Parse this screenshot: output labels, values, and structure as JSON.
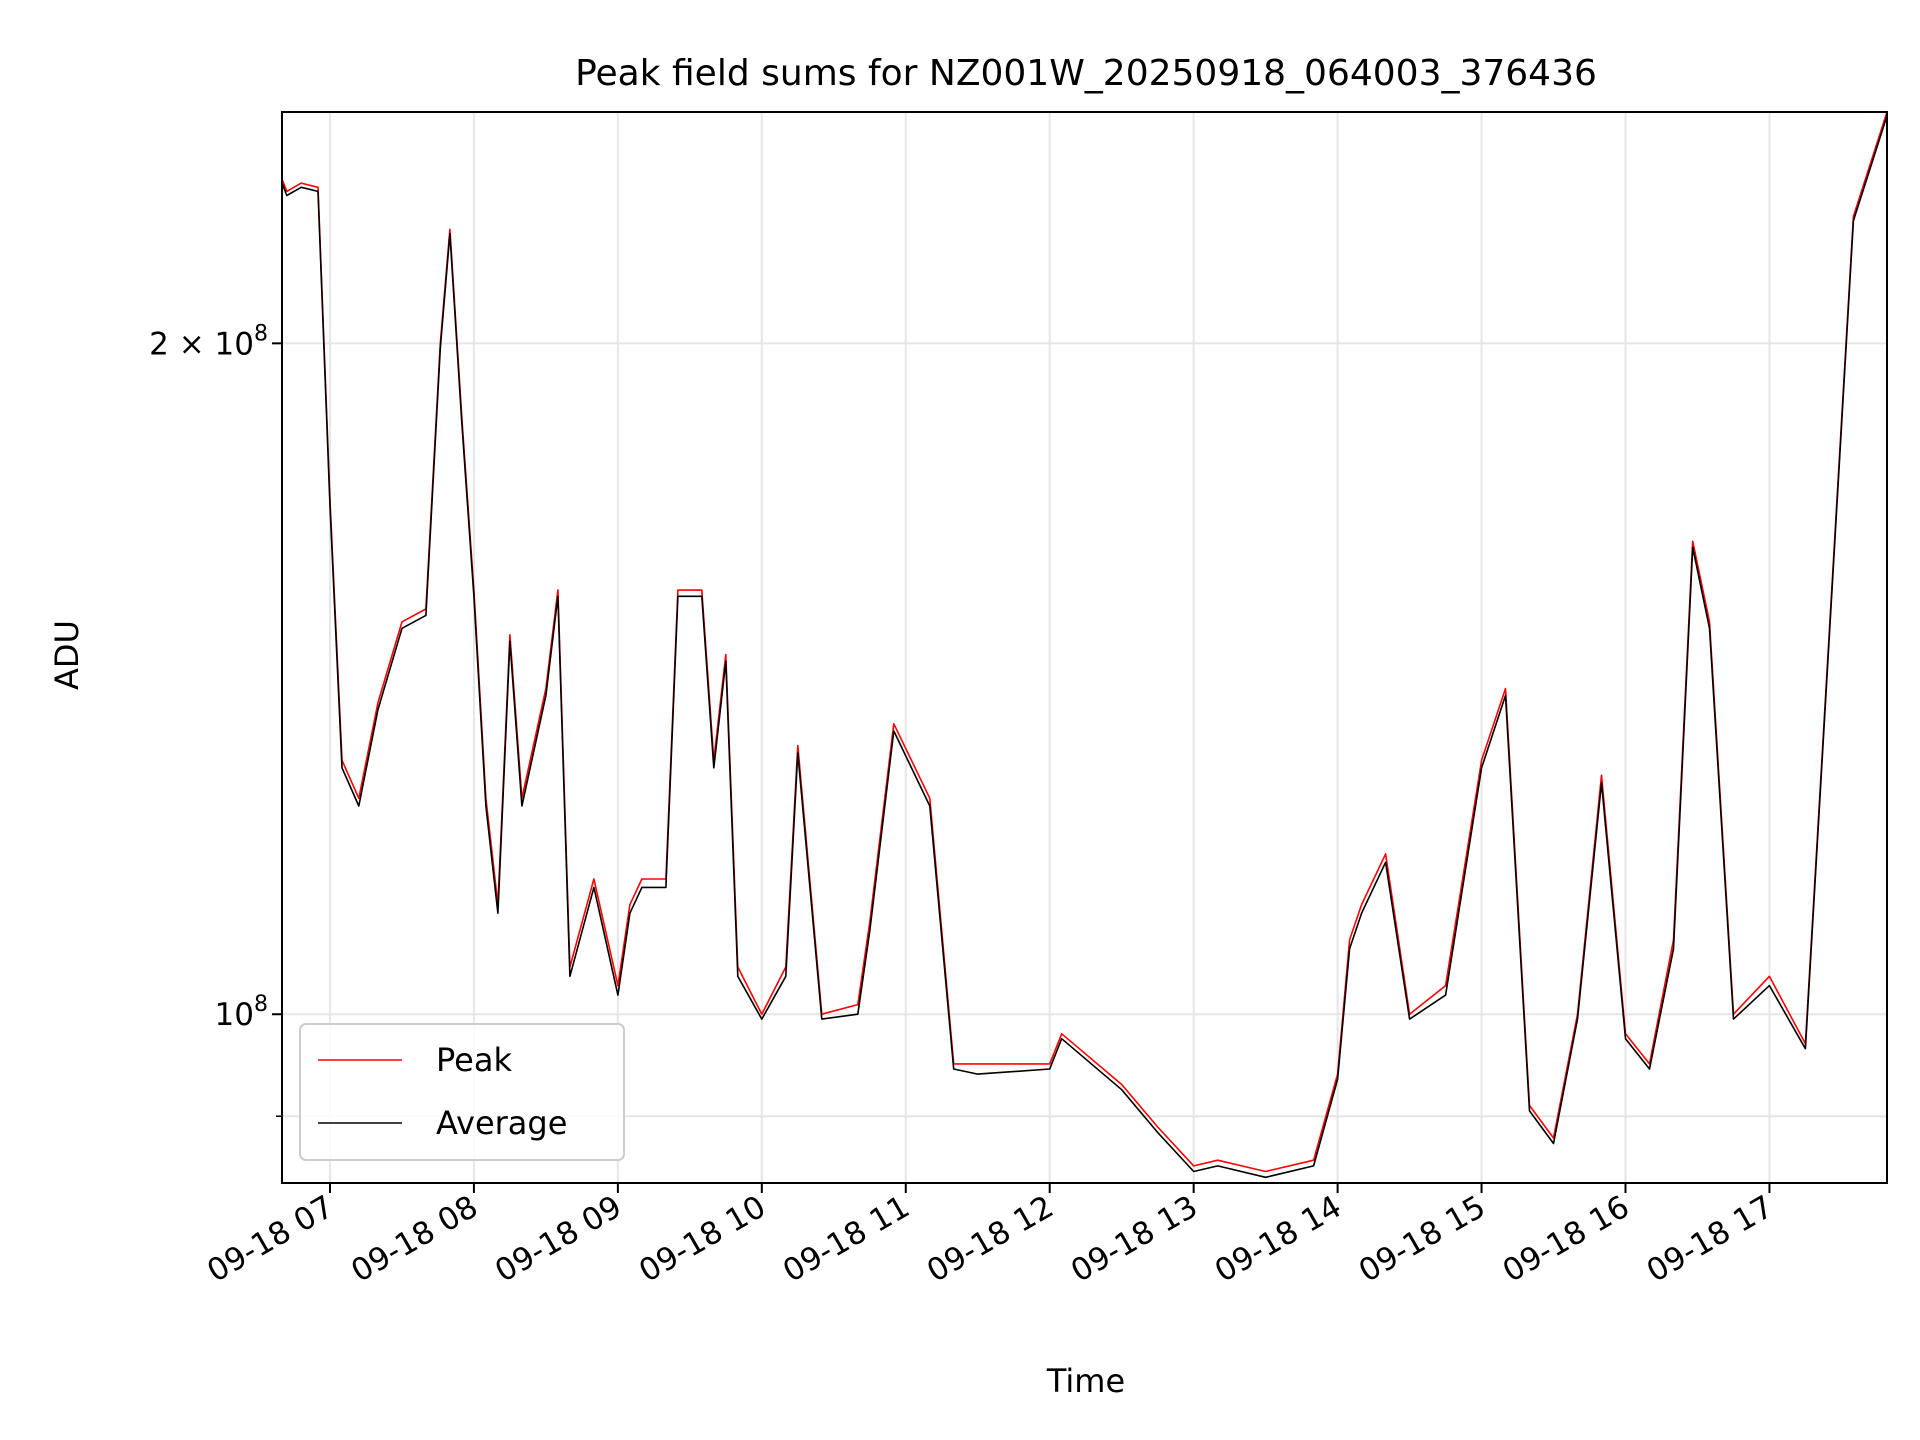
{
  "chart_data": {
    "type": "line",
    "title": "Peak field sums for NZ001W_20250918_064003_376436",
    "xlabel": "Time",
    "ylabel": "ADU",
    "x_axis": {
      "kind": "time",
      "range": [
        "2025-09-18 06:40",
        "2025-09-18 17:49"
      ],
      "ticks": [
        {
          "t": "2025-09-18 07:00",
          "label": "09-18 07"
        },
        {
          "t": "2025-09-18 08:00",
          "label": "09-18 08"
        },
        {
          "t": "2025-09-18 09:00",
          "label": "09-18 09"
        },
        {
          "t": "2025-09-18 10:00",
          "label": "09-18 10"
        },
        {
          "t": "2025-09-18 11:00",
          "label": "09-18 11"
        },
        {
          "t": "2025-09-18 12:00",
          "label": "09-18 12"
        },
        {
          "t": "2025-09-18 13:00",
          "label": "09-18 13"
        },
        {
          "t": "2025-09-18 14:00",
          "label": "09-18 14"
        },
        {
          "t": "2025-09-18 15:00",
          "label": "09-18 15"
        },
        {
          "t": "2025-09-18 16:00",
          "label": "09-18 16"
        },
        {
          "t": "2025-09-18 17:00",
          "label": "09-18 17"
        }
      ]
    },
    "y_axis": {
      "scale": "log",
      "range": [
        84000000,
        254000000
      ],
      "major_ticks": [
        {
          "value": 100000000,
          "label_base": "10",
          "label_exp": "8"
        },
        {
          "value": 200000000,
          "label_base": "2 × 10",
          "label_exp": "8"
        }
      ],
      "minor_ticks": [
        90000000
      ]
    },
    "grid": true,
    "legend": {
      "placement": "lower-left",
      "entries": [
        "Peak",
        "Average"
      ]
    },
    "series": [
      {
        "name": "Peak",
        "color": "#ff0000",
        "points": [
          [
            "2025-09-18 06:40",
            237000000
          ],
          [
            "2025-09-18 06:42",
            234000000
          ],
          [
            "2025-09-18 06:48",
            236000000
          ],
          [
            "2025-09-18 06:55",
            235000000
          ],
          [
            "2025-09-18 07:00",
            170000000
          ],
          [
            "2025-09-18 07:05",
            130000000
          ],
          [
            "2025-09-18 07:12",
            125000000
          ],
          [
            "2025-09-18 07:20",
            138000000
          ],
          [
            "2025-09-18 07:30",
            150000000
          ],
          [
            "2025-09-18 07:40",
            152000000
          ],
          [
            "2025-09-18 07:46",
            200000000
          ],
          [
            "2025-09-18 07:50",
            225000000
          ],
          [
            "2025-09-18 07:55",
            185000000
          ],
          [
            "2025-09-18 08:00",
            155000000
          ],
          [
            "2025-09-18 08:05",
            125000000
          ],
          [
            "2025-09-18 08:10",
            112000000
          ],
          [
            "2025-09-18 08:15",
            148000000
          ],
          [
            "2025-09-18 08:20",
            125000000
          ],
          [
            "2025-09-18 08:30",
            140000000
          ],
          [
            "2025-09-18 08:35",
            155000000
          ],
          [
            "2025-09-18 08:40",
            105000000
          ],
          [
            "2025-09-18 08:50",
            115000000
          ],
          [
            "2025-09-18 09:00",
            103000000
          ],
          [
            "2025-09-18 09:05",
            112000000
          ],
          [
            "2025-09-18 09:10",
            115000000
          ],
          [
            "2025-09-18 09:20",
            115000000
          ],
          [
            "2025-09-18 09:25",
            155000000
          ],
          [
            "2025-09-18 09:35",
            155000000
          ],
          [
            "2025-09-18 09:40",
            130000000
          ],
          [
            "2025-09-18 09:45",
            145000000
          ],
          [
            "2025-09-18 09:50",
            105000000
          ],
          [
            "2025-09-18 10:00",
            100000000
          ],
          [
            "2025-09-18 10:10",
            105000000
          ],
          [
            "2025-09-18 10:15",
            132000000
          ],
          [
            "2025-09-18 10:25",
            100000000
          ],
          [
            "2025-09-18 10:40",
            101000000
          ],
          [
            "2025-09-18 10:45",
            110000000
          ],
          [
            "2025-09-18 10:55",
            135000000
          ],
          [
            "2025-09-18 11:10",
            125000000
          ],
          [
            "2025-09-18 11:20",
            95000000
          ],
          [
            "2025-09-18 11:30",
            95000000
          ],
          [
            "2025-09-18 12:00",
            95000000
          ],
          [
            "2025-09-18 12:05",
            98000000
          ],
          [
            "2025-09-18 12:30",
            93000000
          ],
          [
            "2025-09-18 12:45",
            89000000
          ],
          [
            "2025-09-18 13:00",
            85500000
          ],
          [
            "2025-09-18 13:10",
            86000000
          ],
          [
            "2025-09-18 13:30",
            85000000
          ],
          [
            "2025-09-18 13:50",
            86000000
          ],
          [
            "2025-09-18 14:00",
            94000000
          ],
          [
            "2025-09-18 14:05",
            108000000
          ],
          [
            "2025-09-18 14:10",
            112000000
          ],
          [
            "2025-09-18 14:20",
            118000000
          ],
          [
            "2025-09-18 14:30",
            100000000
          ],
          [
            "2025-09-18 14:45",
            103000000
          ],
          [
            "2025-09-18 15:00",
            130000000
          ],
          [
            "2025-09-18 15:10",
            140000000
          ],
          [
            "2025-09-18 15:20",
            91000000
          ],
          [
            "2025-09-18 15:30",
            88000000
          ],
          [
            "2025-09-18 15:40",
            100000000
          ],
          [
            "2025-09-18 15:50",
            128000000
          ],
          [
            "2025-09-18 16:00",
            98000000
          ],
          [
            "2025-09-18 16:10",
            95000000
          ],
          [
            "2025-09-18 16:20",
            108000000
          ],
          [
            "2025-09-18 16:28",
            163000000
          ],
          [
            "2025-09-18 16:35",
            150000000
          ],
          [
            "2025-09-18 16:45",
            100000000
          ],
          [
            "2025-09-18 17:00",
            104000000
          ],
          [
            "2025-09-18 17:15",
            97000000
          ],
          [
            "2025-09-18 17:35",
            228000000
          ],
          [
            "2025-09-18 17:49",
            254000000
          ]
        ]
      },
      {
        "name": "Average",
        "color": "#000000",
        "points": [
          [
            "2025-09-18 06:40",
            236000000
          ],
          [
            "2025-09-18 06:42",
            233000000
          ],
          [
            "2025-09-18 06:48",
            235000000
          ],
          [
            "2025-09-18 06:55",
            234000000
          ],
          [
            "2025-09-18 07:00",
            169000000
          ],
          [
            "2025-09-18 07:05",
            129000000
          ],
          [
            "2025-09-18 07:12",
            124000000
          ],
          [
            "2025-09-18 07:20",
            137000000
          ],
          [
            "2025-09-18 07:30",
            149000000
          ],
          [
            "2025-09-18 07:40",
            151000000
          ],
          [
            "2025-09-18 07:46",
            199000000
          ],
          [
            "2025-09-18 07:50",
            224000000
          ],
          [
            "2025-09-18 07:55",
            184000000
          ],
          [
            "2025-09-18 08:00",
            154000000
          ],
          [
            "2025-09-18 08:05",
            124000000
          ],
          [
            "2025-09-18 08:10",
            111000000
          ],
          [
            "2025-09-18 08:15",
            147000000
          ],
          [
            "2025-09-18 08:20",
            124000000
          ],
          [
            "2025-09-18 08:30",
            139000000
          ],
          [
            "2025-09-18 08:35",
            154000000
          ],
          [
            "2025-09-18 08:40",
            104000000
          ],
          [
            "2025-09-18 08:50",
            114000000
          ],
          [
            "2025-09-18 09:00",
            102000000
          ],
          [
            "2025-09-18 09:05",
            111000000
          ],
          [
            "2025-09-18 09:10",
            114000000
          ],
          [
            "2025-09-18 09:20",
            114000000
          ],
          [
            "2025-09-18 09:25",
            154000000
          ],
          [
            "2025-09-18 09:35",
            154000000
          ],
          [
            "2025-09-18 09:40",
            129000000
          ],
          [
            "2025-09-18 09:45",
            144000000
          ],
          [
            "2025-09-18 09:50",
            104000000
          ],
          [
            "2025-09-18 10:00",
            99500000
          ],
          [
            "2025-09-18 10:10",
            104000000
          ],
          [
            "2025-09-18 10:15",
            131000000
          ],
          [
            "2025-09-18 10:25",
            99500000
          ],
          [
            "2025-09-18 10:40",
            100000000
          ],
          [
            "2025-09-18 10:45",
            109000000
          ],
          [
            "2025-09-18 10:55",
            134000000
          ],
          [
            "2025-09-18 11:10",
            124000000
          ],
          [
            "2025-09-18 11:20",
            94500000
          ],
          [
            "2025-09-18 11:30",
            94000000
          ],
          [
            "2025-09-18 12:00",
            94500000
          ],
          [
            "2025-09-18 12:05",
            97500000
          ],
          [
            "2025-09-18 12:30",
            92500000
          ],
          [
            "2025-09-18 12:45",
            88500000
          ],
          [
            "2025-09-18 13:00",
            85000000
          ],
          [
            "2025-09-18 13:10",
            85500000
          ],
          [
            "2025-09-18 13:30",
            84500000
          ],
          [
            "2025-09-18 13:50",
            85500000
          ],
          [
            "2025-09-18 14:00",
            93500000
          ],
          [
            "2025-09-18 14:05",
            107000000
          ],
          [
            "2025-09-18 14:10",
            111000000
          ],
          [
            "2025-09-18 14:20",
            117000000
          ],
          [
            "2025-09-18 14:30",
            99500000
          ],
          [
            "2025-09-18 14:45",
            102000000
          ],
          [
            "2025-09-18 15:00",
            129000000
          ],
          [
            "2025-09-18 15:10",
            139000000
          ],
          [
            "2025-09-18 15:20",
            90500000
          ],
          [
            "2025-09-18 15:30",
            87500000
          ],
          [
            "2025-09-18 15:40",
            99500000
          ],
          [
            "2025-09-18 15:50",
            127000000
          ],
          [
            "2025-09-18 16:00",
            97500000
          ],
          [
            "2025-09-18 16:10",
            94500000
          ],
          [
            "2025-09-18 16:20",
            107000000
          ],
          [
            "2025-09-18 16:28",
            162000000
          ],
          [
            "2025-09-18 16:35",
            149000000
          ],
          [
            "2025-09-18 16:45",
            99500000
          ],
          [
            "2025-09-18 17:00",
            103000000
          ],
          [
            "2025-09-18 17:15",
            96500000
          ],
          [
            "2025-09-18 17:35",
            227000000
          ],
          [
            "2025-09-18 17:49",
            253000000
          ]
        ]
      }
    ]
  }
}
